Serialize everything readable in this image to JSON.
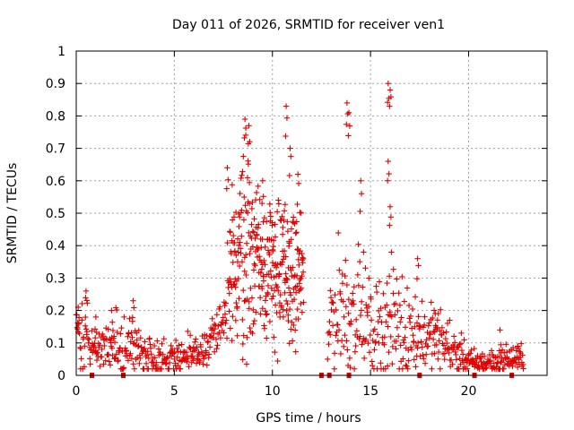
{
  "chart_data": {
    "type": "scatter",
    "title": "Day 011 of 2026, SRMTID for receiver ven1",
    "xlabel": "GPS time / hours",
    "ylabel": "SRMTID / TECUs",
    "xlim": [
      0,
      24
    ],
    "ylim": [
      0,
      1
    ],
    "xticks": [
      0,
      5,
      10,
      15,
      20
    ],
    "xtick_labels": [
      "0",
      "5",
      "10",
      "15",
      "20"
    ],
    "yticks": [
      0,
      0.1,
      0.2,
      0.3,
      0.4,
      0.5,
      0.6,
      0.7,
      0.8,
      0.9,
      1
    ],
    "ytick_labels": [
      "0",
      "0.1",
      "0.2",
      "0.3",
      "0.4",
      "0.5",
      "0.6",
      "0.7",
      "0.8",
      "0.9",
      "1"
    ],
    "grid": true,
    "marker": "+",
    "color": "#e00000",
    "envelope_hours": [
      0,
      0.3,
      0.6,
      1,
      1.5,
      2,
      2.5,
      3,
      3.5,
      4,
      4.5,
      5,
      5.5,
      6,
      6.5,
      7,
      7.5,
      8,
      8.5,
      9,
      9.5,
      10,
      10.5,
      11,
      11.5,
      12,
      12.5,
      13,
      13.5,
      14,
      14.5,
      15,
      15.5,
      16,
      16.5,
      17,
      17.5,
      18,
      18.5,
      19,
      19.5,
      20,
      20.5,
      21,
      21.5,
      22,
      22.5,
      22.8
    ],
    "envelope_mean": [
      0.15,
      0.13,
      0.1,
      0.08,
      0.08,
      0.09,
      0.09,
      0.08,
      0.07,
      0.05,
      0.05,
      0.06,
      0.06,
      0.06,
      0.08,
      0.12,
      0.15,
      0.33,
      0.42,
      0.39,
      0.36,
      0.33,
      0.32,
      0.29,
      0.3,
      0.0,
      0.0,
      0.18,
      0.22,
      0.2,
      0.2,
      0.14,
      0.15,
      0.17,
      0.15,
      0.14,
      0.13,
      0.12,
      0.11,
      0.09,
      0.07,
      0.04,
      0.04,
      0.04,
      0.04,
      0.05,
      0.05,
      0.06
    ],
    "envelope_spread": [
      0.05,
      0.06,
      0.05,
      0.04,
      0.05,
      0.05,
      0.05,
      0.05,
      0.04,
      0.03,
      0.03,
      0.03,
      0.03,
      0.03,
      0.03,
      0.04,
      0.05,
      0.15,
      0.17,
      0.14,
      0.12,
      0.12,
      0.12,
      0.1,
      0.08,
      0.0,
      0.0,
      0.08,
      0.1,
      0.1,
      0.1,
      0.06,
      0.08,
      0.1,
      0.08,
      0.06,
      0.06,
      0.05,
      0.05,
      0.04,
      0.03,
      0.02,
      0.02,
      0.02,
      0.02,
      0.02,
      0.02,
      0.02
    ],
    "peaks": [
      {
        "x": 0.1,
        "y": 0.21
      },
      {
        "x": 0.5,
        "y": 0.26
      },
      {
        "x": 1.0,
        "y": 0.18
      },
      {
        "x": 1.8,
        "y": 0.2
      },
      {
        "x": 2.9,
        "y": 0.23
      },
      {
        "x": 7.7,
        "y": 0.64
      },
      {
        "x": 8.6,
        "y": 0.79
      },
      {
        "x": 8.8,
        "y": 0.77
      },
      {
        "x": 9.5,
        "y": 0.6
      },
      {
        "x": 10.7,
        "y": 0.83
      },
      {
        "x": 10.9,
        "y": 0.7
      },
      {
        "x": 11.3,
        "y": 0.62
      },
      {
        "x": 13.8,
        "y": 0.84
      },
      {
        "x": 13.9,
        "y": 0.81
      },
      {
        "x": 14.5,
        "y": 0.6
      },
      {
        "x": 15.9,
        "y": 0.9
      },
      {
        "x": 16.0,
        "y": 0.88
      },
      {
        "x": 15.9,
        "y": 0.66
      },
      {
        "x": 16.0,
        "y": 0.52
      },
      {
        "x": 17.4,
        "y": 0.36
      },
      {
        "x": 18.3,
        "y": 0.19
      },
      {
        "x": 21.6,
        "y": 0.14
      },
      {
        "x": 22.5,
        "y": 0.09
      }
    ],
    "data_gap_markers": [
      0.8,
      2.4,
      12.5,
      12.9,
      13.9,
      17.5,
      20.3,
      22.2
    ]
  }
}
